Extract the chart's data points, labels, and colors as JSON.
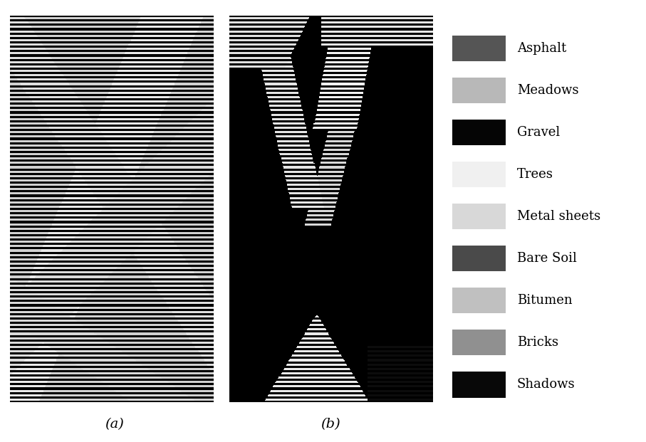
{
  "legend_labels": [
    "Asphalt",
    "Meadows",
    "Gravel",
    "Trees",
    "Metal sheets",
    "Bare Soil",
    "Bitumen",
    "Bricks",
    "Shadows"
  ],
  "legend_colors": [
    "#555555",
    "#b8b8b8",
    "#050505",
    "#f0f0f0",
    "#d8d8d8",
    "#4a4a4a",
    "#c0c0c0",
    "#909090",
    "#080808"
  ],
  "label_a": "(a)",
  "label_b": "(b)",
  "bg_color": "#ffffff",
  "legend_fontsize": 13,
  "fig_width": 9.07,
  "fig_height": 6.21,
  "dpi": 100,
  "scan_period": 6,
  "scan_dark_rows": 3
}
